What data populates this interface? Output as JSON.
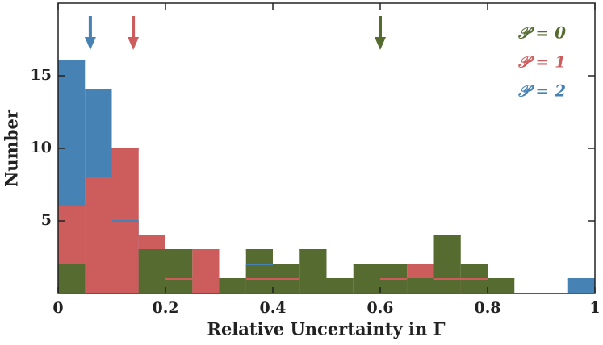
{
  "chart_data": {
    "type": "histogram",
    "x_label": "Relative Uncertainty in Γ",
    "y_label": "Number",
    "bins": [
      0,
      0.05,
      0.1,
      0.15,
      0.2,
      0.25,
      0.3,
      0.35,
      0.4,
      0.45,
      0.5,
      0.55,
      0.6,
      0.65,
      0.7,
      0.75,
      0.8,
      0.85,
      0.9,
      0.95,
      1
    ],
    "series": [
      {
        "name": "𝒫 = 2",
        "color": "#4682b4",
        "arrow": 0.06,
        "values": [
          16,
          14,
          5,
          3,
          0,
          0,
          0,
          2,
          0,
          0,
          0,
          0,
          0,
          0,
          0,
          0,
          0,
          0,
          0,
          1
        ]
      },
      {
        "name": "𝒫 = 1",
        "color": "#cd5c5c",
        "arrow": 0.14,
        "values": [
          6,
          8,
          10,
          4,
          1,
          3,
          0,
          1,
          1,
          0,
          0,
          0,
          1,
          2,
          1,
          1,
          0,
          0,
          0,
          0
        ]
      },
      {
        "name": "𝒫 = 0",
        "color": "#556b2f",
        "arrow": 0.6,
        "values": [
          2,
          0,
          0,
          3,
          3,
          0,
          1,
          3,
          2,
          3,
          1,
          2,
          2,
          1,
          4,
          2,
          1,
          0,
          0,
          0
        ]
      }
    ],
    "xlim": [
      0,
      1
    ],
    "ylim": [
      0,
      20
    ],
    "xticks": [
      0,
      0.2,
      0.4,
      0.6,
      0.8,
      1
    ],
    "yticks": [
      5,
      10,
      15
    ],
    "legend": "upper right"
  }
}
